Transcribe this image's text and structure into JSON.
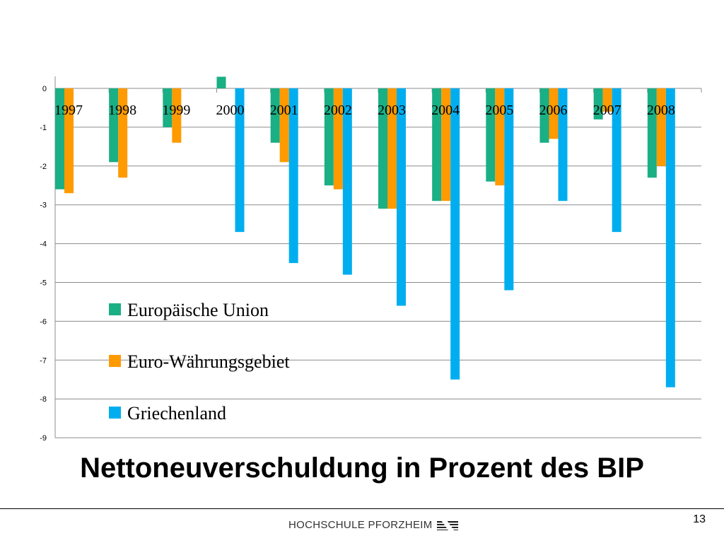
{
  "chart_data": {
    "type": "bar",
    "categories": [
      "1997",
      "1998",
      "1999",
      "2000",
      "2001",
      "2002",
      "2003",
      "2004",
      "2005",
      "2006",
      "2007",
      "2008"
    ],
    "series": [
      {
        "name": "Europäische Union",
        "color": "#1aaf85",
        "values": [
          -2.6,
          -1.9,
          -1.0,
          0.3,
          -1.4,
          -2.5,
          -3.1,
          -2.9,
          -2.4,
          -1.4,
          -0.8,
          -2.3
        ]
      },
      {
        "name": "Euro-Währungsgebiet",
        "color": "#ff9a00",
        "values": [
          -2.7,
          -2.3,
          -1.4,
          null,
          -1.9,
          -2.6,
          -3.1,
          -2.9,
          -2.5,
          -1.3,
          -0.6,
          -2.0
        ]
      },
      {
        "name": "Griechenland",
        "color": "#00aeef",
        "values": [
          null,
          null,
          null,
          -3.7,
          -4.5,
          -4.8,
          -5.6,
          -7.5,
          -5.2,
          -2.9,
          -3.7,
          -7.7
        ]
      }
    ],
    "title": "Nettoneuverschuldung in Prozent des BIP",
    "ylim": [
      -9,
      0.3
    ],
    "yticks": [
      0,
      -1,
      -2,
      -3,
      -4,
      -5,
      -6,
      -7,
      -8,
      -9
    ],
    "grid": true,
    "legend_position": "left-bottom"
  },
  "footer": {
    "page_number": "13",
    "logo_text": "HOCHSCHULE PFORZHEIM",
    "logo_icon": "hochschule-pforzheim-logo-icon"
  }
}
